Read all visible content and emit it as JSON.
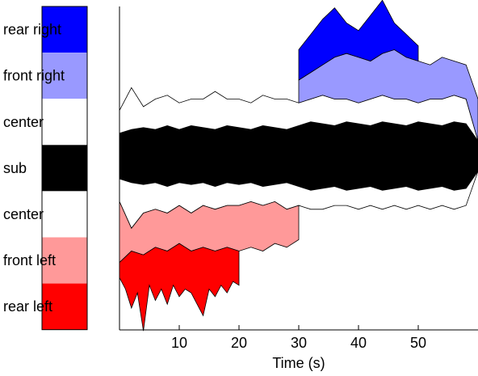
{
  "chart_data": {
    "type": "area",
    "xlabel": "Time (s)",
    "x_ticks": [
      10,
      20,
      30,
      40,
      50
    ],
    "xlim": [
      0,
      60
    ],
    "legend_channels": [
      {
        "label": "rear right",
        "color": "#0000ff"
      },
      {
        "label": "front right",
        "color": "#9999ff"
      },
      {
        "label": "center",
        "color": "#ffffff"
      },
      {
        "label": "sub",
        "color": "#000000"
      },
      {
        "label": "center",
        "color": "#ffffff"
      },
      {
        "label": "front left",
        "color": "#ff9999"
      },
      {
        "label": "rear left",
        "color": "#ff0000"
      }
    ],
    "series": [
      {
        "name": "sub",
        "x": [
          0,
          2,
          4,
          6,
          8,
          10,
          12,
          14,
          16,
          18,
          20,
          22,
          24,
          26,
          28,
          30,
          32,
          34,
          36,
          38,
          40,
          42,
          44,
          46,
          48,
          50,
          52,
          54,
          56,
          58,
          60
        ],
        "upper": [
          0.6,
          0.7,
          0.75,
          0.7,
          0.8,
          0.7,
          0.8,
          0.75,
          0.7,
          0.8,
          0.75,
          0.7,
          0.8,
          0.75,
          0.7,
          0.8,
          0.9,
          0.85,
          0.8,
          0.9,
          0.85,
          0.8,
          0.9,
          0.85,
          0.8,
          0.9,
          0.85,
          0.8,
          0.9,
          0.85,
          0.4
        ],
        "lower": [
          -0.6,
          -0.7,
          -0.75,
          -0.7,
          -0.8,
          -0.7,
          -0.75,
          -0.7,
          -0.8,
          -0.7,
          -0.75,
          -0.7,
          -0.8,
          -0.75,
          -0.7,
          -0.8,
          -0.9,
          -0.85,
          -0.8,
          -0.9,
          -0.85,
          -0.8,
          -0.9,
          -0.85,
          -0.8,
          -0.9,
          -0.85,
          -0.8,
          -0.9,
          -0.85,
          -0.4
        ]
      },
      {
        "name": "center (upper)",
        "x": [
          0,
          2,
          4,
          6,
          8,
          10,
          12,
          14,
          16,
          18,
          20,
          22,
          24,
          26,
          28,
          30,
          32,
          34,
          36,
          38,
          40,
          42,
          44,
          46,
          48,
          50,
          52,
          54,
          56,
          58,
          60
        ],
        "values": [
          1.2,
          1.8,
          1.3,
          1.5,
          1.6,
          1.4,
          1.5,
          1.5,
          1.7,
          1.5,
          1.5,
          1.4,
          1.6,
          1.5,
          1.5,
          1.4,
          1.5,
          1.6,
          1.5,
          1.5,
          1.4,
          1.5,
          1.6,
          1.5,
          1.5,
          1.4,
          1.5,
          1.5,
          1.6,
          1.5,
          0.4
        ]
      },
      {
        "name": "front right",
        "x": [
          30,
          32,
          34,
          36,
          38,
          40,
          42,
          44,
          46,
          48,
          50,
          52,
          54,
          56,
          58,
          60
        ],
        "values": [
          2.0,
          2.2,
          2.4,
          2.6,
          2.7,
          2.6,
          2.5,
          2.7,
          2.8,
          2.6,
          2.5,
          2.4,
          2.6,
          2.5,
          2.4,
          1.5
        ]
      },
      {
        "name": "rear right",
        "x": [
          30,
          32,
          34,
          36,
          38,
          40,
          42,
          44,
          46,
          48,
          50
        ],
        "values": [
          2.8,
          3.2,
          3.6,
          3.9,
          3.5,
          3.3,
          3.7,
          4.1,
          3.5,
          3.2,
          2.9
        ]
      },
      {
        "name": "center (lower)",
        "x": [
          0,
          2,
          4,
          6,
          8,
          10,
          12,
          14,
          16,
          18,
          20,
          22,
          24,
          26,
          28,
          30,
          32,
          34,
          36,
          38,
          40,
          42,
          44,
          46,
          48,
          50,
          52,
          54,
          56,
          58,
          60
        ],
        "values": [
          -1.2,
          -1.9,
          -1.5,
          -1.4,
          -1.5,
          -1.3,
          -1.5,
          -1.3,
          -1.4,
          -1.3,
          -1.3,
          -1.2,
          -1.3,
          -1.2,
          -1.4,
          -1.3,
          -1.4,
          -1.4,
          -1.3,
          -1.3,
          -1.4,
          -1.3,
          -1.4,
          -1.3,
          -1.4,
          -1.3,
          -1.4,
          -1.3,
          -1.4,
          -1.3,
          -0.4
        ]
      },
      {
        "name": "front left",
        "x": [
          0,
          2,
          4,
          6,
          8,
          10,
          12,
          14,
          16,
          18,
          20,
          22,
          24,
          26,
          28,
          30
        ],
        "values": [
          -2.8,
          -2.5,
          -2.6,
          -2.4,
          -2.5,
          -2.3,
          -2.5,
          -2.4,
          -2.5,
          -2.4,
          -2.5,
          -2.4,
          -2.5,
          -2.3,
          -2.4,
          -2.2
        ]
      },
      {
        "name": "rear left",
        "x": [
          0,
          1,
          2,
          3,
          4,
          5,
          6,
          7,
          8,
          9,
          10,
          11,
          12,
          13,
          14,
          15,
          16,
          17,
          18,
          19,
          20
        ],
        "values": [
          -3.2,
          -3.5,
          -4.0,
          -3.6,
          -4.6,
          -3.4,
          -3.8,
          -3.5,
          -3.9,
          -3.4,
          -3.7,
          -3.5,
          -3.6,
          -3.9,
          -4.2,
          -3.5,
          -3.7,
          -3.4,
          -3.6,
          -3.3,
          -3.4
        ]
      }
    ]
  }
}
